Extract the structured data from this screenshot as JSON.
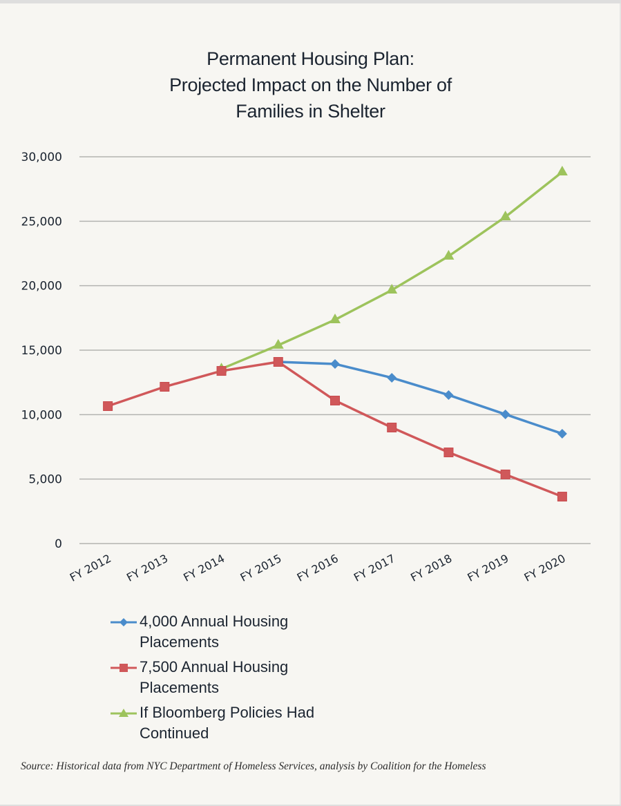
{
  "chart_data": {
    "type": "line",
    "title": [
      "Permanent Housing Plan:",
      "Projected Impact on the Number of",
      "Families in Shelter"
    ],
    "xlabel": "",
    "ylabel": "",
    "categories": [
      "FY 2012",
      "FY 2013",
      "FY 2014",
      "FY 2015",
      "FY 2016",
      "FY 2017",
      "FY 2018",
      "FY 2019",
      "FY 2020"
    ],
    "ylim": [
      0,
      30000
    ],
    "yticks": [
      0,
      5000,
      10000,
      15000,
      20000,
      25000,
      30000
    ],
    "ytick_labels": [
      "0",
      "5,000",
      "10,000",
      "15,000",
      "20,000",
      "25,000",
      "30,000"
    ],
    "grid": true,
    "legend_position": "bottom-left",
    "series": [
      {
        "name": "4,000 Annual Housing Placements",
        "color": "#4a8ccb",
        "marker": "diamond",
        "values": [
          null,
          null,
          null,
          14090,
          13930,
          12860,
          11520,
          10020,
          8520
        ]
      },
      {
        "name": "7,500 Annual Housing Placements",
        "color": "#d0585a",
        "marker": "square",
        "values": [
          10660,
          12160,
          13390,
          14090,
          11090,
          9000,
          7070,
          5360,
          3640
        ]
      },
      {
        "name": "If Bloomberg Policies Had Continued",
        "name_lines": [
          "If Bloomberg Policies Had",
          "Continued"
        ],
        "color": "#9dc35c",
        "marker": "triangle",
        "values": [
          null,
          null,
          13550,
          15380,
          17360,
          19660,
          22290,
          25340,
          28820
        ]
      }
    ]
  },
  "source": "Source:  Historical data from NYC Department of Homeless Services, analysis by Coalition for the Homeless",
  "colors": {
    "background": "#f7f6f2",
    "grid": "#b3b3b0",
    "text": "#1b2430"
  }
}
